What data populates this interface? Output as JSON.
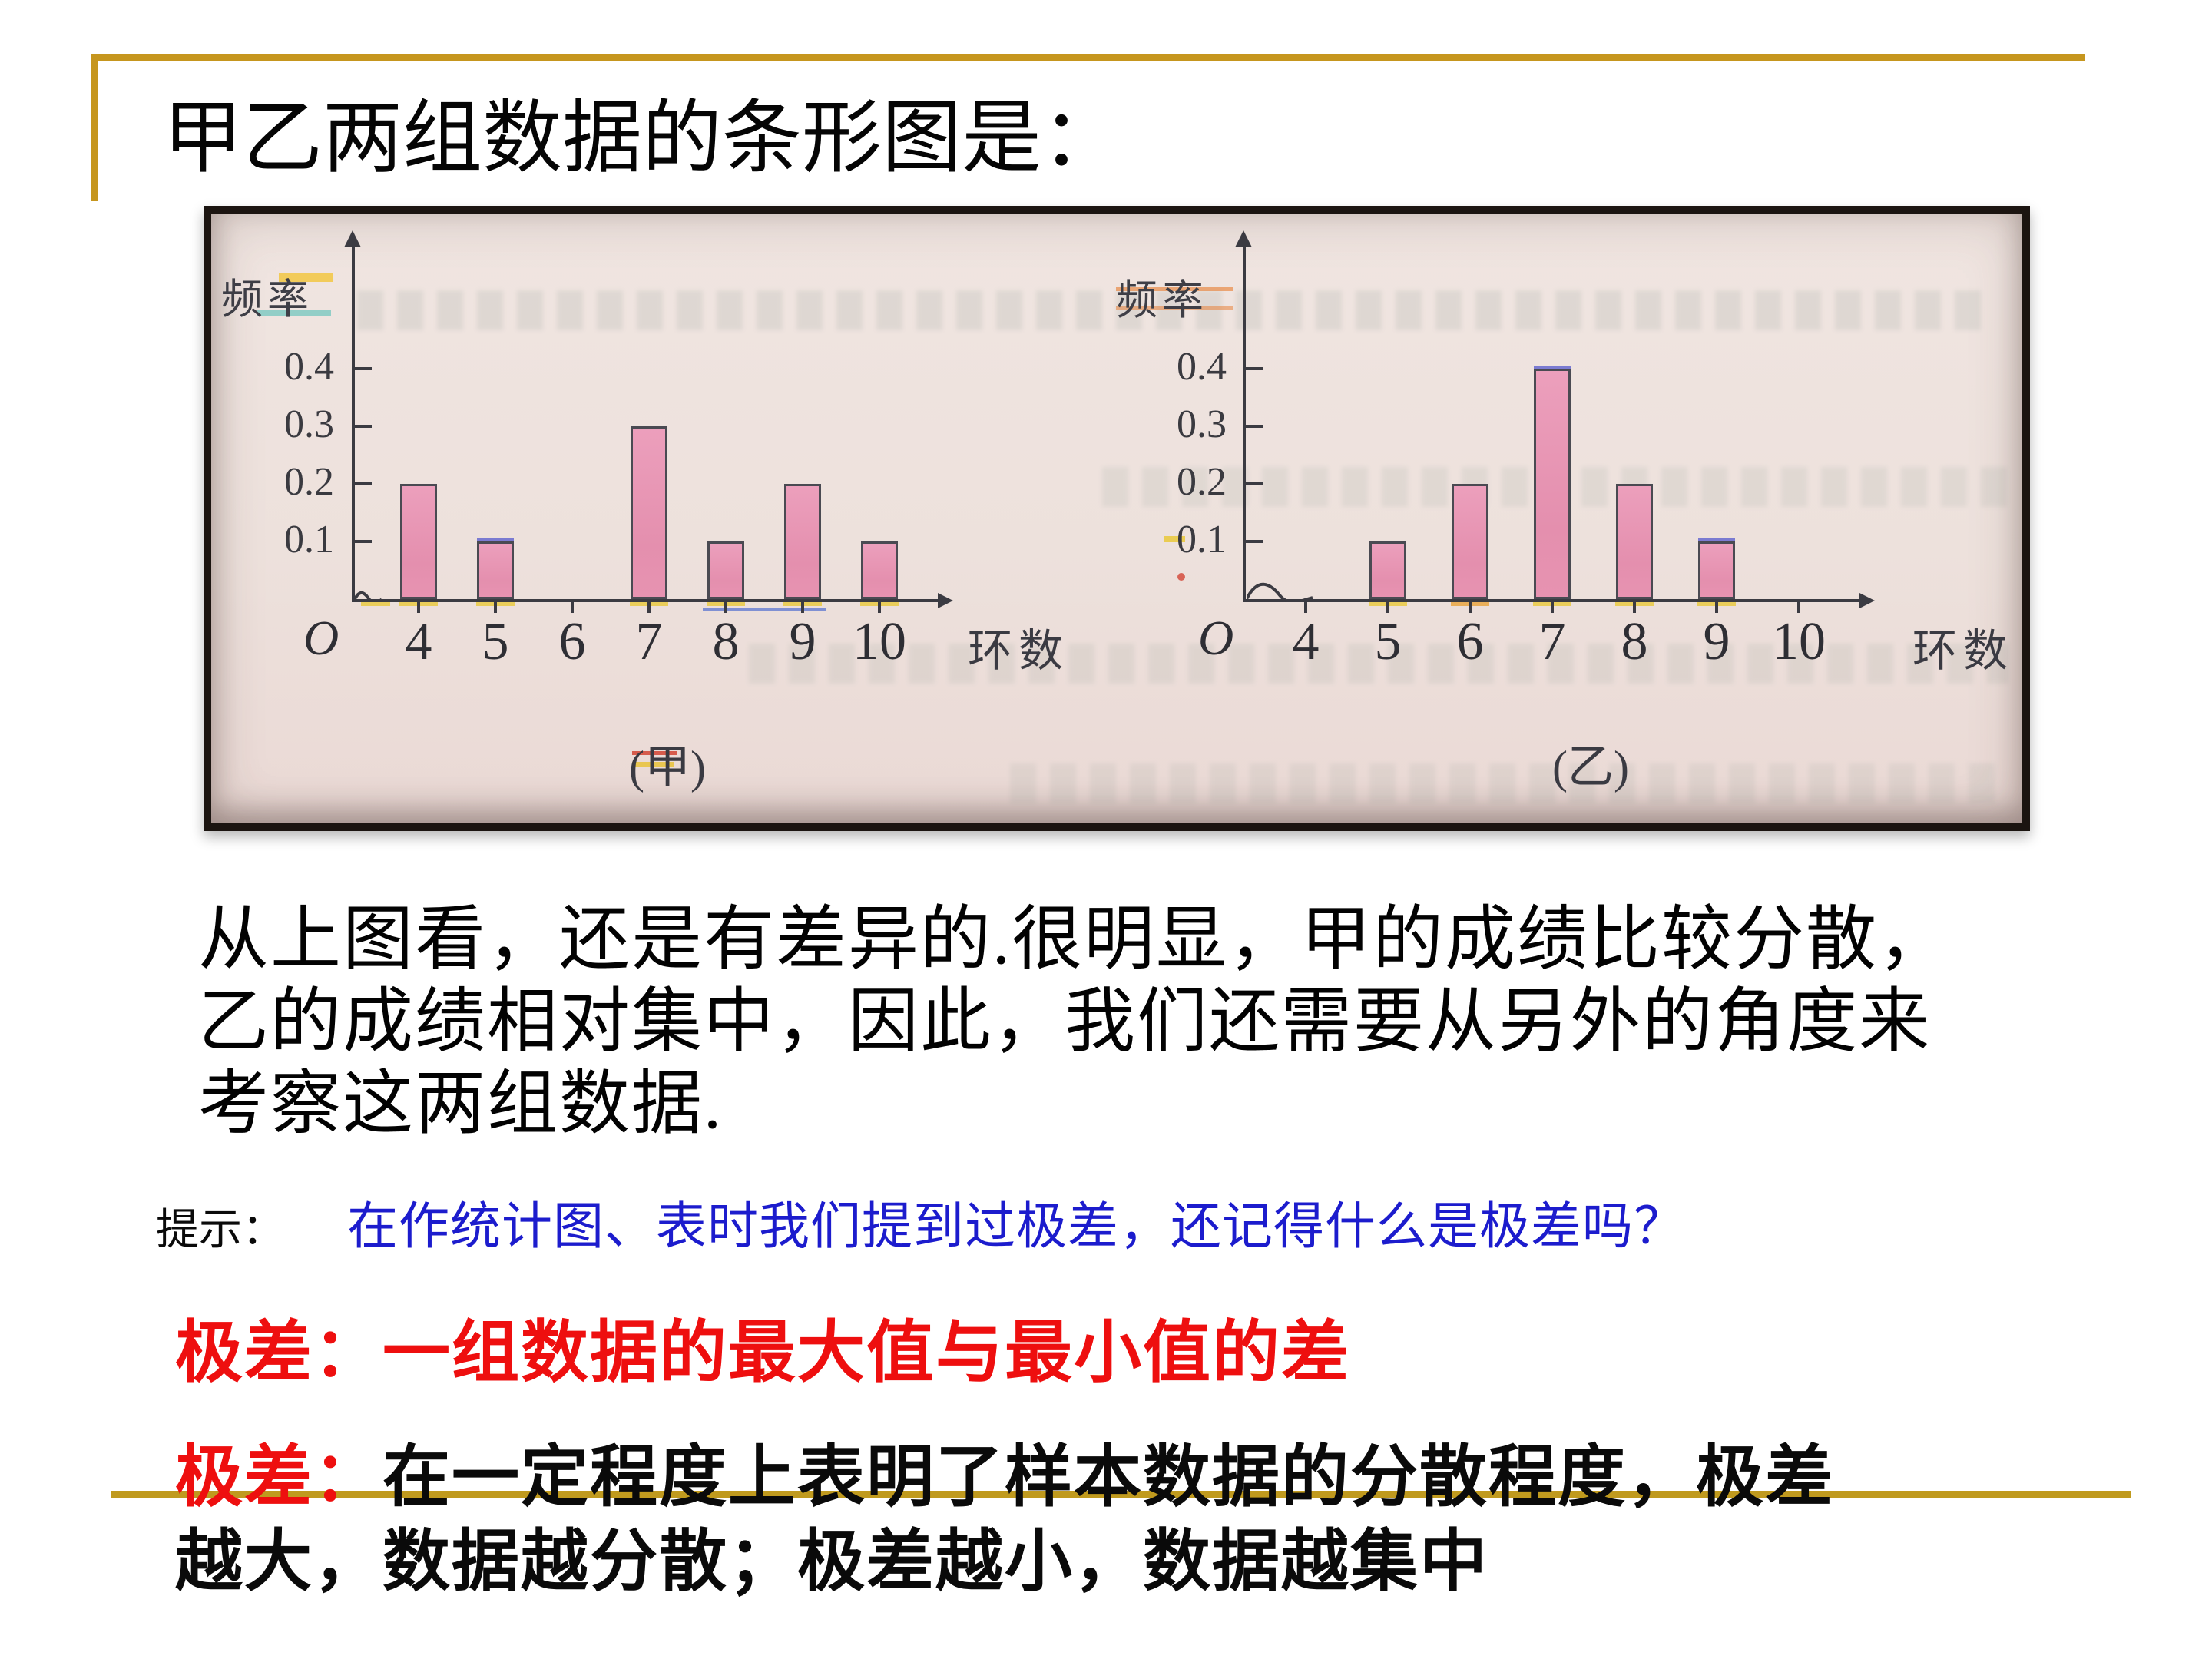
{
  "slide": {
    "title": "甲乙两组数据的条形图是：",
    "paragraph_lines": [
      "从上图看，还是有差异的.很明显，甲的成绩比较分散，",
      "乙的成绩相对集中，因此，我们还需要从另外的角度来",
      "考察这两组数据."
    ],
    "hint_label": "提示：",
    "hint_text": "在作统计图、表时我们提到过极差，还记得什么是极差吗？",
    "range_def_label": "极差：",
    "range_def_text": "一组数据的最大值与最小值的差",
    "range_note_label": "极差：",
    "range_note_text_part1": "在一定程度上表明了样本数据的分散程度，极差",
    "range_note_text_part2": "越大，数据越分散；极差越小，数据越集中"
  },
  "colors": {
    "accent_gold": "#C6961E",
    "hint_blue": "#1C1CCD",
    "emphasis_red": "#EE0F0F",
    "bar_fill": "#E795B4",
    "bar_outline": "#4A4A52",
    "photo_background": "#EDE1DC",
    "axis": "#3B3B42"
  },
  "chart_data": [
    {
      "type": "bar",
      "title": "(甲)",
      "ylabel": "频率",
      "xlabel": "环数",
      "origin_label": "O",
      "categories": [
        "4",
        "5",
        "6",
        "7",
        "8",
        "9",
        "10"
      ],
      "values": [
        0.2,
        0.1,
        0,
        0.3,
        0.1,
        0.2,
        0.1
      ],
      "yticks": [
        0.1,
        0.2,
        0.3,
        0.4
      ],
      "ylim": [
        0,
        0.45
      ],
      "grid": false,
      "legend_position": "none"
    },
    {
      "type": "bar",
      "title": "(乙)",
      "ylabel": "频率",
      "xlabel": "环数",
      "origin_label": "O",
      "categories": [
        "4",
        "5",
        "6",
        "7",
        "8",
        "9",
        "10"
      ],
      "values": [
        0,
        0.1,
        0.2,
        0.4,
        0.2,
        0.1,
        0
      ],
      "yticks": [
        0.1,
        0.2,
        0.3,
        0.4
      ],
      "ylim": [
        0,
        0.45
      ],
      "grid": false,
      "legend_position": "none"
    }
  ]
}
